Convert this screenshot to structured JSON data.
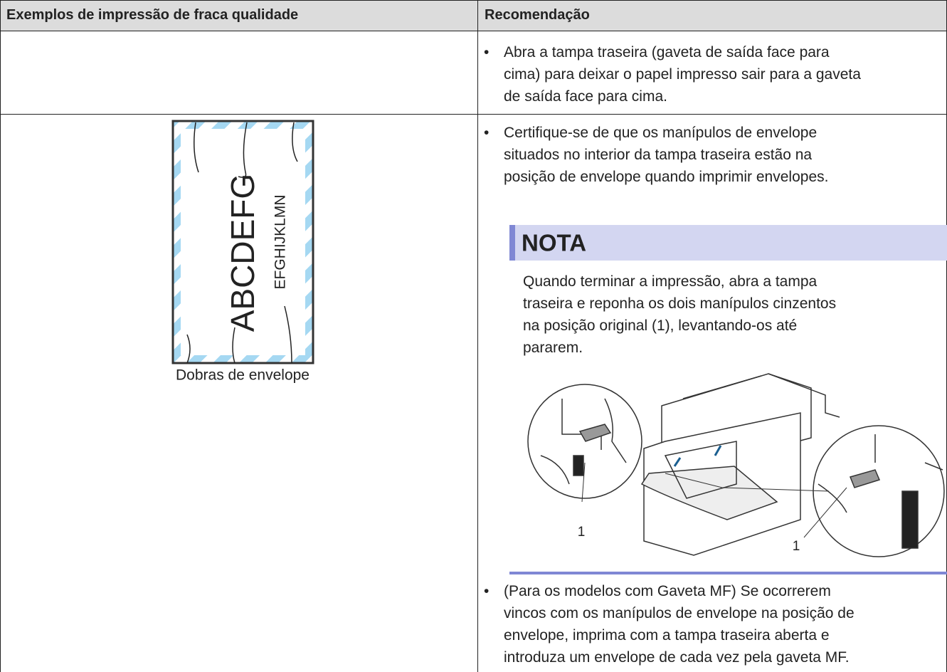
{
  "table": {
    "header": [
      "Exemplos de impressão de fraca qualidade",
      "Recomendação"
    ],
    "rows": [
      {
        "recommendation": [
          {
            "lines": [
              "Abra a tampa traseira (gaveta de saída face para",
              "cima) para deixar o papel impresso sair para a gaveta",
              "de saída face para cima."
            ]
          }
        ]
      },
      {
        "example": {
          "big_text": "ABCDEFG",
          "small_text": "EFGHIJKLMN",
          "caption": "Dobras de envelope"
        },
        "recommendation": [
          {
            "lines": [
              "Certifique-se de que os manípulos de envelope",
              "situados no interior da tampa traseira estão na",
              "posição de envelope quando imprimir envelopes."
            ]
          },
          {
            "lines": [
              "(Para os modelos com Gaveta MF) Se ocorrerem",
              "vincos com os manípulos de envelope na posição de",
              "envelope, imprima com a tampa traseira aberta e",
              "introduza um envelope de cada vez pela gaveta MF."
            ]
          }
        ],
        "note": {
          "title": "NOTA",
          "lines": [
            "Quando terminar a impressão, abra a tampa",
            "traseira e reponha os dois manípulos cinzentos",
            "na posição original (1), levantando-os até",
            "pararem."
          ],
          "callouts": [
            "1",
            "1"
          ]
        }
      }
    ]
  }
}
